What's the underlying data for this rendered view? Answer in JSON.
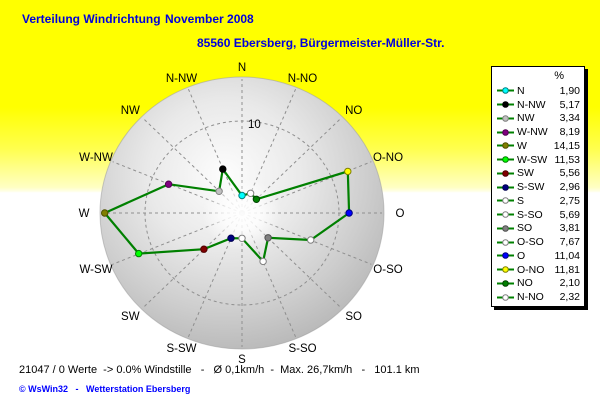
{
  "header": {
    "title_left": "Verteilung Windrichtung",
    "title_right": "November 2008",
    "subtitle": "85560 Ebersberg, Bürgermeister-Müller-Str."
  },
  "chart_data": {
    "type": "radar",
    "title": "Verteilung Windrichtung November 2008",
    "unit": "%",
    "grid": "dashed-spokes-and-circle",
    "grid_circle_value": 10,
    "grid_circle_label": "10",
    "rmax": 14.8,
    "categories": [
      "N",
      "N-NO",
      "NO",
      "O-NO",
      "O",
      "O-SO",
      "SO",
      "S-SO",
      "S",
      "S-SW",
      "SW",
      "W-SW",
      "W",
      "W-NW",
      "NW",
      "N-NW"
    ],
    "values": [
      1.9,
      2.32,
      2.1,
      11.81,
      11.04,
      7.67,
      3.81,
      5.69,
      2.75,
      2.96,
      5.56,
      11.53,
      14.15,
      8.19,
      3.34,
      5.17
    ],
    "series_color": "#008000",
    "legend_position": "right"
  },
  "legend": {
    "header": "%",
    "items": [
      {
        "label": "N",
        "value": "1,90",
        "marker": "#00ffff",
        "edge": "#008080"
      },
      {
        "label": "N-NW",
        "value": "5,17",
        "marker": "#000000",
        "edge": "#000000"
      },
      {
        "label": "NW",
        "value": "3,34",
        "marker": "#c0c0c0",
        "edge": "#808080"
      },
      {
        "label": "W-NW",
        "value": "8,19",
        "marker": "#800080",
        "edge": "#500050"
      },
      {
        "label": "W",
        "value": "14,15",
        "marker": "#808000",
        "edge": "#505000"
      },
      {
        "label": "W-SW",
        "value": "11,53",
        "marker": "#00ff00",
        "edge": "#008000"
      },
      {
        "label": "SW",
        "value": "5,56",
        "marker": "#800000",
        "edge": "#500000"
      },
      {
        "label": "S-SW",
        "value": "2,96",
        "marker": "#000080",
        "edge": "#000050"
      },
      {
        "label": "S",
        "value": "2,75",
        "marker": "#ffffff",
        "edge": "#808080"
      },
      {
        "label": "S-SO",
        "value": "5,69",
        "marker": "#ffffff",
        "edge": "#808080"
      },
      {
        "label": "SO",
        "value": "3,81",
        "marker": "#808080",
        "edge": "#505050"
      },
      {
        "label": "O-SO",
        "value": "7,67",
        "marker": "#ffffff",
        "edge": "#808080"
      },
      {
        "label": "O",
        "value": "11,04",
        "marker": "#0000ff",
        "edge": "#000080"
      },
      {
        "label": "O-NO",
        "value": "11,81",
        "marker": "#ffff00",
        "edge": "#808000"
      },
      {
        "label": "NO",
        "value": "2,10",
        "marker": "#008000",
        "edge": "#004000"
      },
      {
        "label": "N-NO",
        "value": "2,32",
        "marker": "#ffffff",
        "edge": "#808080"
      }
    ]
  },
  "status": {
    "summary": "21047 / 0 Werte  -> 0.0% Windstille   -   Ø 0,1km/h  -  Max. 26,7km/h   -   101.1 km",
    "credit": "© WsWin32   -   Wetterstation Ebersberg"
  },
  "colors": {
    "title_text": "#0000dd",
    "background_top": "#ffff00",
    "background_bottom": "#ffffff",
    "disc_gray": "#c6c6c6",
    "grid_gray": "#8f8f8f",
    "polygon_green": "#008000",
    "credit_blue": "#0000ff"
  }
}
